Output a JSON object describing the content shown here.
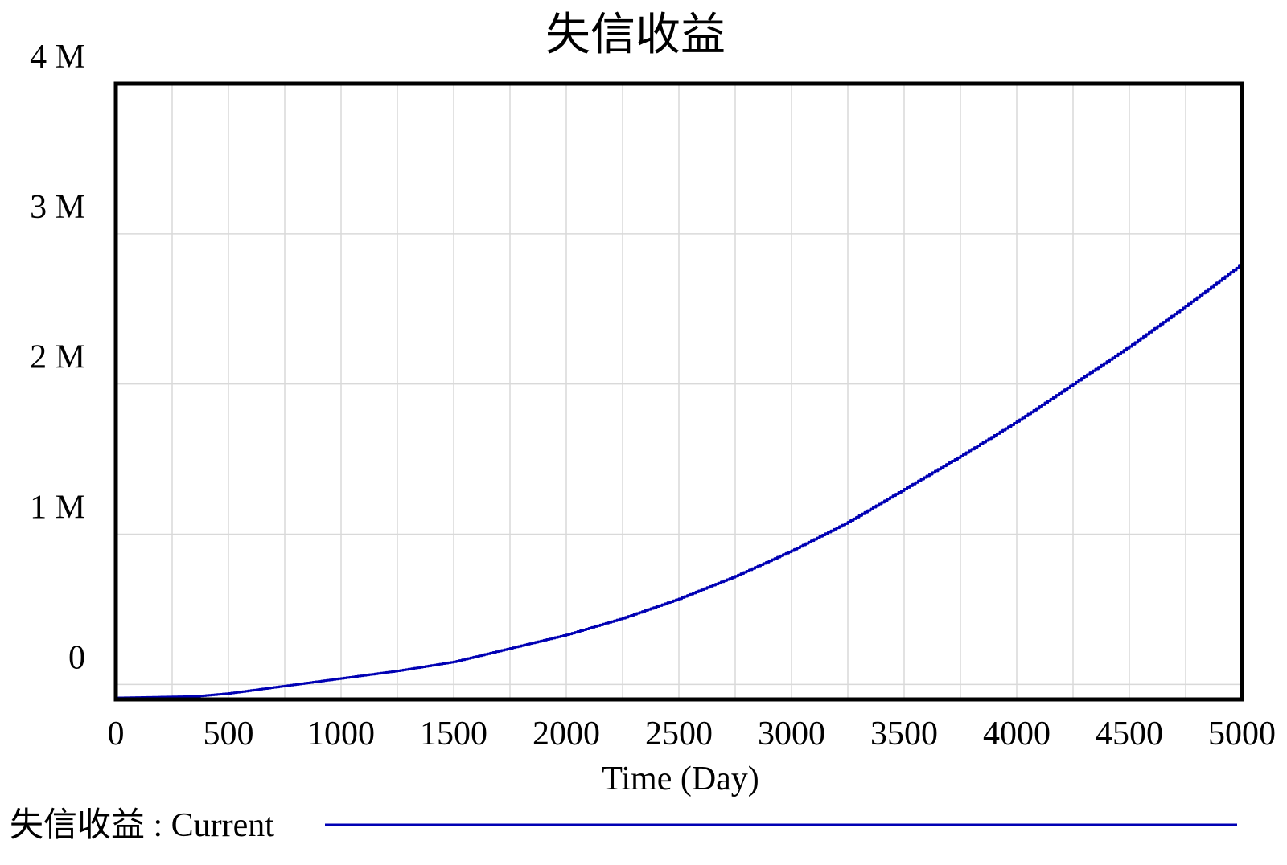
{
  "chart_data": {
    "type": "line",
    "title": "失信收益",
    "xlabel": "Time (Day)",
    "ylabel": "",
    "xlim": [
      0,
      5000
    ],
    "ylim": [
      -0.1,
      4.0
    ],
    "y_unit": "M",
    "x_ticks": [
      {
        "value": 0,
        "label": "0"
      },
      {
        "value": 500,
        "label": "500"
      },
      {
        "value": 1000,
        "label": "1000"
      },
      {
        "value": 1500,
        "label": "1500"
      },
      {
        "value": 2000,
        "label": "2000"
      },
      {
        "value": 2500,
        "label": "2500"
      },
      {
        "value": 3000,
        "label": "3000"
      },
      {
        "value": 3500,
        "label": "3500"
      },
      {
        "value": 4000,
        "label": "4000"
      },
      {
        "value": 4500,
        "label": "4500"
      },
      {
        "value": 5000,
        "label": "5000"
      }
    ],
    "y_ticks": [
      {
        "value": 0,
        "label": "0"
      },
      {
        "value": 1,
        "label": "1 M"
      },
      {
        "value": 2,
        "label": "2 M"
      },
      {
        "value": 3,
        "label": "3 M"
      },
      {
        "value": 4,
        "label": "4 M"
      }
    ],
    "grid": true,
    "legend": {
      "position": "bottom-left"
    },
    "series": [
      {
        "name": "失信收益 : Current",
        "color": "#0000b4",
        "x": [
          0,
          350,
          500,
          750,
          1000,
          1250,
          1500,
          1750,
          2000,
          2250,
          2500,
          2750,
          3000,
          3250,
          3500,
          3750,
          4000,
          4250,
          4500,
          4750,
          5000
        ],
        "y": [
          -0.09,
          -0.08,
          -0.06,
          -0.01,
          0.04,
          0.09,
          0.15,
          0.24,
          0.33,
          0.44,
          0.57,
          0.72,
          0.89,
          1.08,
          1.3,
          1.52,
          1.75,
          2.0,
          2.25,
          2.52,
          2.8
        ]
      }
    ]
  },
  "legend_items": [
    {
      "label": "失信收益 : Current",
      "color": "#0000b4"
    }
  ]
}
